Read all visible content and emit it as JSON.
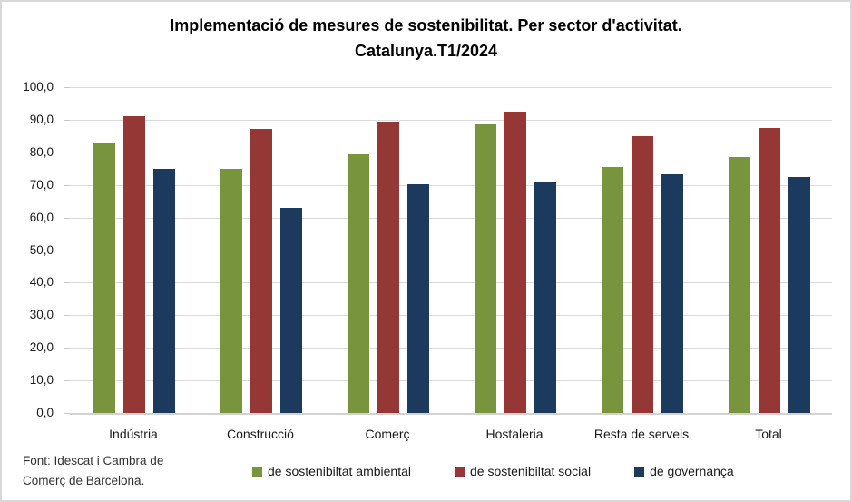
{
  "title": {
    "line1": "Implementació de mesures de sostenibilitat. Per sector d'activitat.",
    "line2": "Catalunya.T1/2024"
  },
  "source": {
    "line1": "Font: Idescat i Cambra de",
    "line2": "Comerç de Barcelona."
  },
  "chart_data": {
    "type": "bar",
    "title": "Implementació de mesures de sostenibilitat. Per sector d'activitat. Catalunya.T1/2024",
    "categories": [
      "Indústria",
      "Construcció",
      "Comerç",
      "Hostaleria",
      "Resta de serveis",
      "Total"
    ],
    "series": [
      {
        "name": "de sostenibiltat ambiental",
        "color": "#78953E",
        "values": [
          82.7,
          74.9,
          79.4,
          88.5,
          75.5,
          78.5
        ]
      },
      {
        "name": "de sostenibiltat social",
        "color": "#943735",
        "values": [
          91.2,
          87.3,
          89.3,
          92.5,
          85.0,
          87.5
        ]
      },
      {
        "name": "de governança",
        "color": "#1B3A5E",
        "values": [
          75.0,
          63.0,
          70.2,
          71.1,
          73.4,
          72.3
        ]
      }
    ],
    "xlabel": "",
    "ylabel": "",
    "ylim": [
      0,
      100
    ],
    "ytick_step": 10,
    "ytick_labels": [
      "0,0",
      "10,0",
      "20,0",
      "30,0",
      "40,0",
      "50,0",
      "60,0",
      "70,0",
      "80,0",
      "90,0",
      "100,0"
    ],
    "grid": true,
    "gridline_color": "#dadada",
    "axis_color": "#d2d2d2",
    "legend_position": "bottom"
  }
}
